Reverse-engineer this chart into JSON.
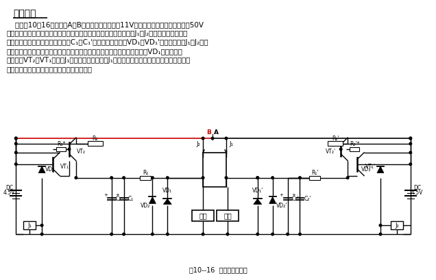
{
  "title": "工作原理",
  "body_text": [
    "    参见图10－16，电话线A、B上在电话机工作时有11V左右的直流电压，在振铃时有50V",
    "左右的交流电压。在甲乙两机均处于候机状态时，线路无电流通过，J₁、J₂均不吸合。当电话机",
    "振铃时，甲乙两单机同时响铃，因C₁、C₁'对交流通路，所以VD₁、VD₁'两端无压降，J₁、J₂不吸",
    "合。此时若甲机拿起听筒与对方电话接通而处于工作状态，则直流电压通过VD₁加在电话机",
    "甲机上使VT₂、VT₁导通，J₁吸合，串在线路中的J₁常闭接点断开乙机。若甲机往外打电话时",
    "情况和上面一样，乙机自动断开。反之亦然。"
  ],
  "caption": "图10--16  切换电路原理图",
  "bg_color": "#ffffff",
  "line_color": "#000000",
  "red_color": "#cc0000",
  "text_color": "#000000"
}
